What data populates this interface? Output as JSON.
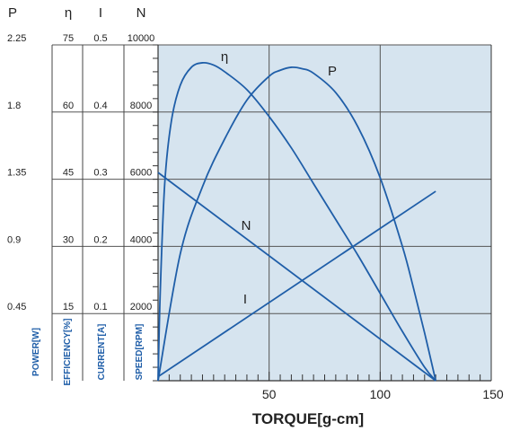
{
  "chart_data": {
    "type": "line",
    "xlabel": "TORQUE[g-cm]",
    "xlim": [
      0,
      150
    ],
    "x_ticks": [
      "50",
      "100",
      "150"
    ],
    "axes": [
      {
        "symbol": "P",
        "label": "POWER[W]",
        "ticks": [
          "2.25",
          "1.8",
          "1.35",
          "0.9",
          "0.45"
        ],
        "range": [
          0,
          2.25
        ]
      },
      {
        "symbol": "η",
        "label": "EFFICIENCY[%]",
        "ticks": [
          "75",
          "60",
          "45",
          "30",
          "15"
        ],
        "range": [
          0,
          75
        ]
      },
      {
        "symbol": "I",
        "label": "CURRENT[A]",
        "ticks": [
          "0.5",
          "0.4",
          "0.3",
          "0.2",
          "0.1"
        ],
        "range": [
          0,
          0.5
        ]
      },
      {
        "symbol": "N",
        "label": "SPEED[RPM]",
        "ticks": [
          "10000",
          "8000",
          "6000",
          "4000",
          "2000"
        ],
        "range": [
          0,
          10000
        ]
      }
    ],
    "series": [
      {
        "name": "η",
        "axis": 1,
        "color": "#1f5ea8",
        "x": [
          0,
          1,
          3,
          6,
          10,
          15,
          20,
          25,
          30,
          40,
          50,
          60,
          70,
          80,
          90,
          100,
          110,
          120,
          125
        ],
        "y": [
          0,
          20,
          44,
          58,
          66,
          70,
          71,
          70.5,
          69,
          65,
          59,
          52,
          44,
          36,
          28,
          19.5,
          11,
          3,
          0
        ]
      },
      {
        "name": "P",
        "axis": 0,
        "color": "#1f5ea8",
        "x": [
          0,
          10,
          20,
          30,
          40,
          50,
          55,
          60,
          65,
          70,
          80,
          90,
          100,
          110,
          115,
          120,
          125
        ],
        "y": [
          0,
          0.85,
          1.3,
          1.62,
          1.88,
          2.04,
          2.08,
          2.1,
          2.09,
          2.06,
          1.93,
          1.7,
          1.36,
          0.9,
          0.62,
          0.32,
          0
        ]
      },
      {
        "name": "N",
        "axis": 3,
        "color": "#1f5ea8",
        "x": [
          0,
          125
        ],
        "y": [
          6200,
          0
        ]
      },
      {
        "name": "I",
        "axis": 2,
        "color": "#1f5ea8",
        "x": [
          0,
          125
        ],
        "y": [
          0.006,
          0.282
        ]
      }
    ],
    "background": "#d6e4ef",
    "grid": true
  }
}
